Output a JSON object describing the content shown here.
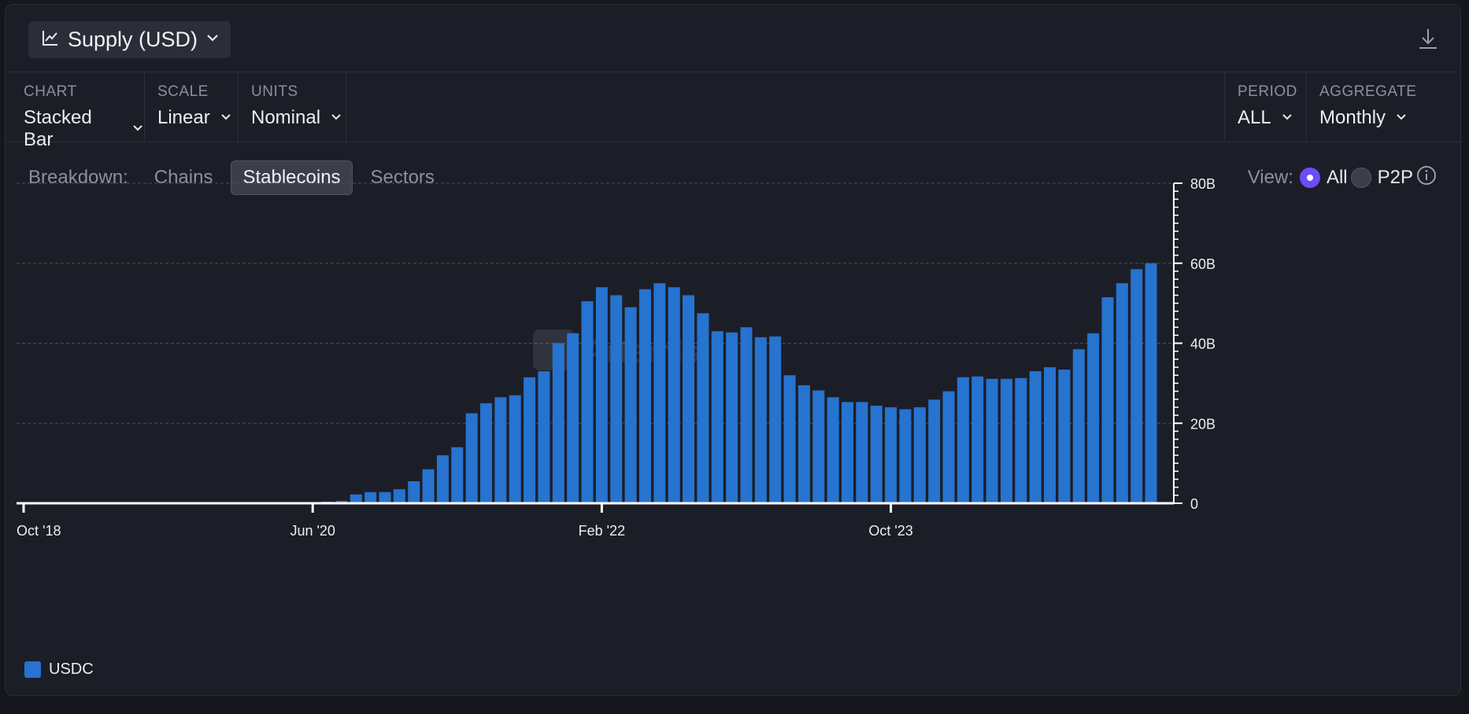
{
  "header": {
    "title": "Supply (USD)"
  },
  "controls": {
    "chart": {
      "label": "CHART",
      "value": "Stacked Bar"
    },
    "scale": {
      "label": "SCALE",
      "value": "Linear"
    },
    "units": {
      "label": "UNITS",
      "value": "Nominal"
    },
    "period": {
      "label": "PERIOD",
      "value": "ALL"
    },
    "aggregate": {
      "label": "AGGREGATE",
      "value": "Monthly"
    }
  },
  "breakdown": {
    "label": "Breakdown:",
    "tabs": [
      "Chains",
      "Stablecoins",
      "Sectors"
    ],
    "active": "Stablecoins"
  },
  "view": {
    "label": "View:",
    "options": [
      "All",
      "P2P"
    ],
    "selected": "All"
  },
  "watermark": "Artemis",
  "colors": {
    "bar": "#2673d0",
    "grid": "#4a4d58",
    "accent": "#6b4cf6"
  },
  "chart_data": {
    "type": "bar",
    "aggregate": "monthly",
    "x_start": "2018-10",
    "x_tick_labels": [
      "Oct '18",
      "Jun '20",
      "Feb '22",
      "Oct '23"
    ],
    "y_tick_labels": [
      "0",
      "20B",
      "40B",
      "60B",
      "80B"
    ],
    "ylim": [
      0,
      80
    ],
    "y_unit": "B USD",
    "y_axis_position": "right",
    "grid": true,
    "legend_position": "bottom-left",
    "series": [
      {
        "name": "USDC",
        "color": "#2673d0",
        "values": [
          0.2,
          0.4,
          0.6,
          2.2,
          2.8,
          2.8,
          3.5,
          5.5,
          8.5,
          12,
          14,
          22.5,
          25,
          26.5,
          27,
          31.5,
          33,
          40,
          42.5,
          50.5,
          54,
          52,
          49,
          53.5,
          55,
          54,
          52,
          47.5,
          43,
          42.7,
          44,
          41.5,
          41.7,
          32,
          29.5,
          28.2,
          26.5,
          25.3,
          25.3,
          24.4,
          24,
          23.5,
          24,
          25.9,
          28,
          31.5,
          31.7,
          31.1,
          31.1,
          31.3,
          33,
          34,
          33.4,
          38.5,
          42.5,
          51.5,
          55,
          58.5,
          60
        ]
      }
    ]
  }
}
